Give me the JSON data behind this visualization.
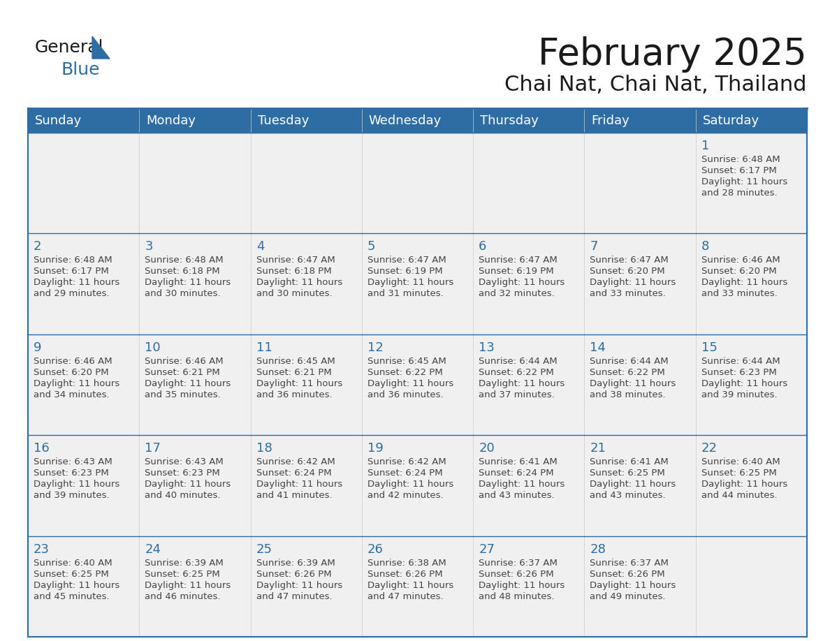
{
  "title": "February 2025",
  "subtitle": "Chai Nat, Chai Nat, Thailand",
  "header_bg_color": "#2E6DA4",
  "header_text_color": "#FFFFFF",
  "cell_bg_color": "#F0F0F0",
  "day_number_color": "#2E6DA4",
  "text_color": "#444444",
  "line_color": "#2E6DA4",
  "days_of_week": [
    "Sunday",
    "Monday",
    "Tuesday",
    "Wednesday",
    "Thursday",
    "Friday",
    "Saturday"
  ],
  "title_fontsize": 38,
  "subtitle_fontsize": 22,
  "header_fontsize": 13,
  "day_num_fontsize": 13,
  "detail_fontsize": 9.5,
  "calendar_data": [
    [
      null,
      null,
      null,
      null,
      null,
      null,
      {
        "day": 1,
        "sunrise": "6:48 AM",
        "sunset": "6:17 PM",
        "daylight": "11 hours and 28 minutes."
      }
    ],
    [
      {
        "day": 2,
        "sunrise": "6:48 AM",
        "sunset": "6:17 PM",
        "daylight": "11 hours and 29 minutes."
      },
      {
        "day": 3,
        "sunrise": "6:48 AM",
        "sunset": "6:18 PM",
        "daylight": "11 hours and 30 minutes."
      },
      {
        "day": 4,
        "sunrise": "6:47 AM",
        "sunset": "6:18 PM",
        "daylight": "11 hours and 30 minutes."
      },
      {
        "day": 5,
        "sunrise": "6:47 AM",
        "sunset": "6:19 PM",
        "daylight": "11 hours and 31 minutes."
      },
      {
        "day": 6,
        "sunrise": "6:47 AM",
        "sunset": "6:19 PM",
        "daylight": "11 hours and 32 minutes."
      },
      {
        "day": 7,
        "sunrise": "6:47 AM",
        "sunset": "6:20 PM",
        "daylight": "11 hours and 33 minutes."
      },
      {
        "day": 8,
        "sunrise": "6:46 AM",
        "sunset": "6:20 PM",
        "daylight": "11 hours and 33 minutes."
      }
    ],
    [
      {
        "day": 9,
        "sunrise": "6:46 AM",
        "sunset": "6:20 PM",
        "daylight": "11 hours and 34 minutes."
      },
      {
        "day": 10,
        "sunrise": "6:46 AM",
        "sunset": "6:21 PM",
        "daylight": "11 hours and 35 minutes."
      },
      {
        "day": 11,
        "sunrise": "6:45 AM",
        "sunset": "6:21 PM",
        "daylight": "11 hours and 36 minutes."
      },
      {
        "day": 12,
        "sunrise": "6:45 AM",
        "sunset": "6:22 PM",
        "daylight": "11 hours and 36 minutes."
      },
      {
        "day": 13,
        "sunrise": "6:44 AM",
        "sunset": "6:22 PM",
        "daylight": "11 hours and 37 minutes."
      },
      {
        "day": 14,
        "sunrise": "6:44 AM",
        "sunset": "6:22 PM",
        "daylight": "11 hours and 38 minutes."
      },
      {
        "day": 15,
        "sunrise": "6:44 AM",
        "sunset": "6:23 PM",
        "daylight": "11 hours and 39 minutes."
      }
    ],
    [
      {
        "day": 16,
        "sunrise": "6:43 AM",
        "sunset": "6:23 PM",
        "daylight": "11 hours and 39 minutes."
      },
      {
        "day": 17,
        "sunrise": "6:43 AM",
        "sunset": "6:23 PM",
        "daylight": "11 hours and 40 minutes."
      },
      {
        "day": 18,
        "sunrise": "6:42 AM",
        "sunset": "6:24 PM",
        "daylight": "11 hours and 41 minutes."
      },
      {
        "day": 19,
        "sunrise": "6:42 AM",
        "sunset": "6:24 PM",
        "daylight": "11 hours and 42 minutes."
      },
      {
        "day": 20,
        "sunrise": "6:41 AM",
        "sunset": "6:24 PM",
        "daylight": "11 hours and 43 minutes."
      },
      {
        "day": 21,
        "sunrise": "6:41 AM",
        "sunset": "6:25 PM",
        "daylight": "11 hours and 43 minutes."
      },
      {
        "day": 22,
        "sunrise": "6:40 AM",
        "sunset": "6:25 PM",
        "daylight": "11 hours and 44 minutes."
      }
    ],
    [
      {
        "day": 23,
        "sunrise": "6:40 AM",
        "sunset": "6:25 PM",
        "daylight": "11 hours and 45 minutes."
      },
      {
        "day": 24,
        "sunrise": "6:39 AM",
        "sunset": "6:25 PM",
        "daylight": "11 hours and 46 minutes."
      },
      {
        "day": 25,
        "sunrise": "6:39 AM",
        "sunset": "6:26 PM",
        "daylight": "11 hours and 47 minutes."
      },
      {
        "day": 26,
        "sunrise": "6:38 AM",
        "sunset": "6:26 PM",
        "daylight": "11 hours and 47 minutes."
      },
      {
        "day": 27,
        "sunrise": "6:37 AM",
        "sunset": "6:26 PM",
        "daylight": "11 hours and 48 minutes."
      },
      {
        "day": 28,
        "sunrise": "6:37 AM",
        "sunset": "6:26 PM",
        "daylight": "11 hours and 49 minutes."
      },
      null
    ]
  ]
}
